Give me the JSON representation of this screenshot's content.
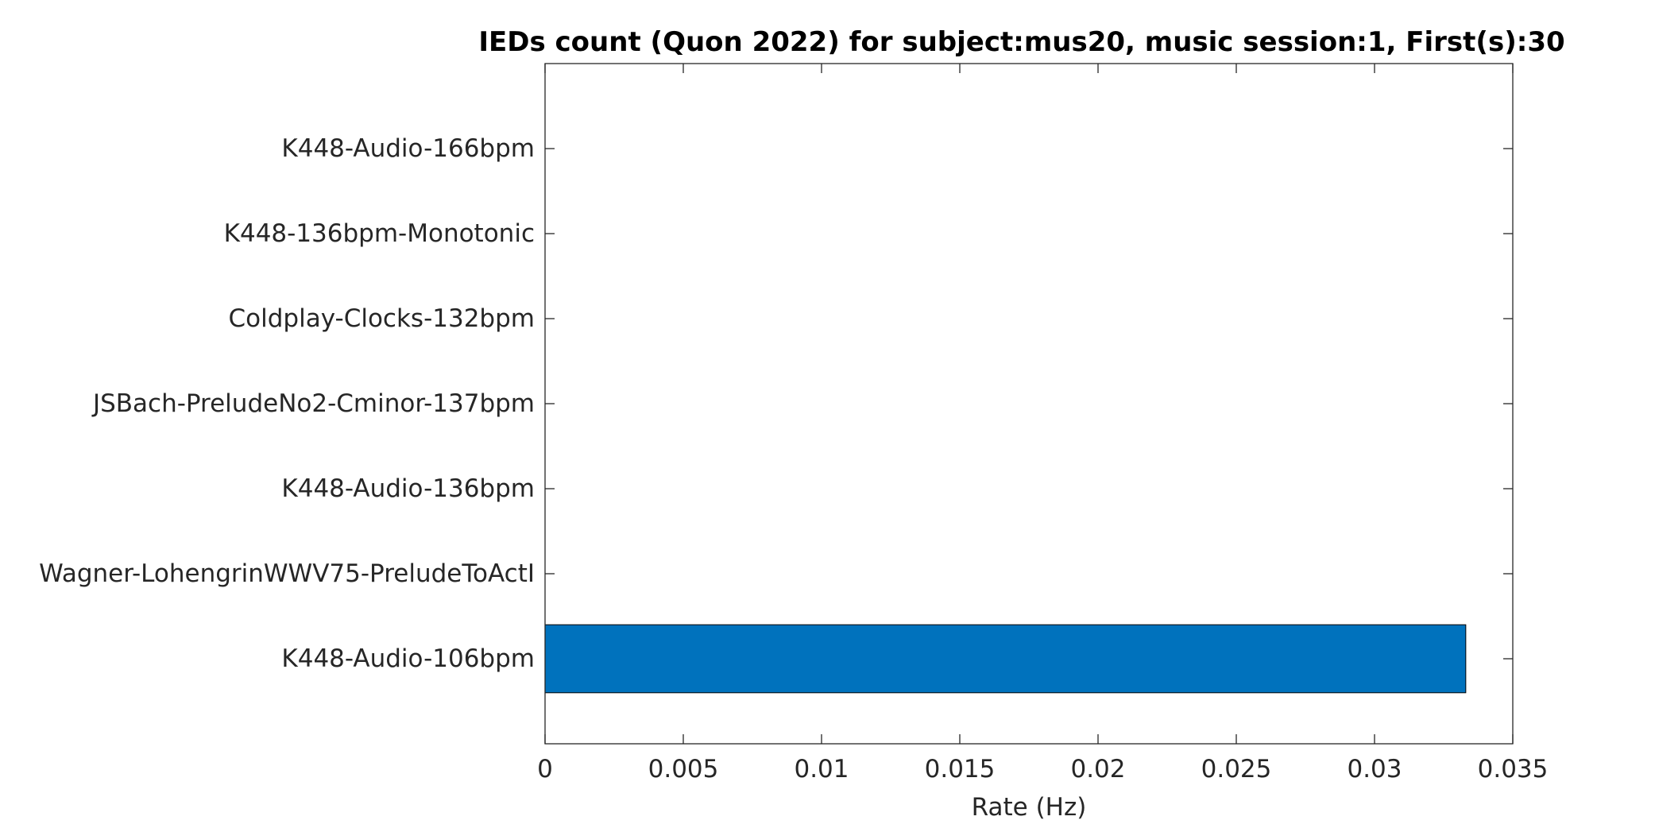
{
  "chart_data": {
    "type": "bar",
    "orientation": "horizontal",
    "title": "IEDs count (Quon 2022) for subject:mus20, music session:1, First(s):30",
    "xlabel": "Rate (Hz)",
    "ylabel": "",
    "categories": [
      "K448-Audio-166bpm",
      "K448-136bpm-Monotonic",
      "Coldplay-Clocks-132bpm",
      "JSBach-PreludeNo2-Cminor-137bpm",
      "K448-Audio-136bpm",
      "Wagner-LohengrinWWV75-PreludeToActI",
      "K448-Audio-106bpm"
    ],
    "values": [
      0,
      0,
      0,
      0,
      0,
      0,
      0.0333
    ],
    "xlim": [
      0,
      0.035
    ],
    "xticks": [
      0,
      0.005,
      0.01,
      0.015,
      0.02,
      0.025,
      0.03,
      0.035
    ],
    "xtick_labels": [
      "0",
      "0.005",
      "0.01",
      "0.015",
      "0.02",
      "0.025",
      "0.03",
      "0.035"
    ],
    "bar_color": "#0072BD",
    "grid": false,
    "legend": "none"
  }
}
